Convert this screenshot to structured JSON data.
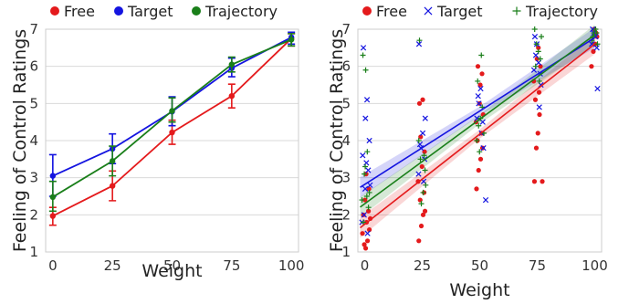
{
  "colors": {
    "Free": "#e41a1c",
    "Target": "#1414e0",
    "Trajectory": "#1a7f1a",
    "grid": "#d9d9d9",
    "frame": "#cccccc"
  },
  "chart_data": [
    {
      "type": "line",
      "xlabel": "Weight",
      "ylabel": "Feeling of Control Ratings",
      "xlim": [
        -3,
        103
      ],
      "ylim": [
        1,
        7
      ],
      "xticks": [
        0,
        25,
        50,
        75,
        100
      ],
      "yticks": [
        1,
        2,
        3,
        4,
        5,
        6,
        7
      ],
      "grid": "horizontal",
      "legend": "top",
      "markers": [
        "dot",
        "dot",
        "dot"
      ],
      "x": [
        0,
        25,
        50,
        75,
        100
      ],
      "series": [
        {
          "name": "Free",
          "values": [
            1.97,
            2.78,
            4.22,
            5.2,
            6.75
          ],
          "err_low": [
            1.72,
            2.38,
            3.9,
            4.88,
            6.55
          ],
          "err_high": [
            2.2,
            3.18,
            4.55,
            5.52,
            6.88
          ]
        },
        {
          "name": "Target",
          "values": [
            3.05,
            3.78,
            4.78,
            5.95,
            6.78
          ],
          "err_low": [
            2.5,
            3.38,
            4.4,
            5.72,
            6.6
          ],
          "err_high": [
            3.62,
            4.18,
            5.18,
            6.22,
            6.92
          ]
        },
        {
          "name": "Trajectory",
          "values": [
            2.48,
            3.45,
            4.8,
            6.05,
            6.72
          ],
          "err_low": [
            2.1,
            3.05,
            4.5,
            5.85,
            6.55
          ],
          "err_high": [
            2.9,
            3.85,
            5.15,
            6.25,
            6.88
          ]
        }
      ]
    },
    {
      "type": "scatter",
      "xlabel": "Weight",
      "ylabel": "Feeling of Control Ratings",
      "xlim": [
        -3,
        103
      ],
      "ylim": [
        1,
        7
      ],
      "xticks": [
        0,
        25,
        50,
        75,
        100
      ],
      "yticks": [
        1,
        2,
        3,
        4,
        5,
        6,
        7
      ],
      "grid": "horizontal",
      "legend": "top",
      "markers": [
        "dot",
        "x",
        "plus"
      ],
      "series": [
        {
          "name": "Free",
          "fit": {
            "intercept": 1.75,
            "slope": 0.0485
          },
          "points": [
            [
              0.4,
              1.1
            ],
            [
              1.2,
              1.3
            ],
            [
              2.0,
              1.6
            ],
            [
              0.8,
              1.8
            ],
            [
              -0.6,
              2.0
            ],
            [
              1.6,
              2.1
            ],
            [
              0.1,
              2.4
            ],
            [
              2.4,
              1.9
            ],
            [
              -1.0,
              1.5
            ],
            [
              1.8,
              2.7
            ],
            [
              0.6,
              3.1
            ],
            [
              -0.2,
              1.2
            ],
            [
              23.5,
              1.3
            ],
            [
              24.6,
              1.7
            ],
            [
              25.4,
              2.0
            ],
            [
              26.2,
              2.1
            ],
            [
              24.1,
              2.4
            ],
            [
              25.8,
              2.6
            ],
            [
              23.2,
              2.9
            ],
            [
              24.9,
              3.3
            ],
            [
              26.0,
              3.7
            ],
            [
              24.3,
              4.1
            ],
            [
              25.2,
              5.1
            ],
            [
              23.8,
              5.0
            ],
            [
              48.6,
              2.7
            ],
            [
              49.5,
              3.2
            ],
            [
              50.4,
              3.5
            ],
            [
              51.2,
              3.8
            ],
            [
              49.0,
              4.0
            ],
            [
              50.8,
              4.2
            ],
            [
              48.4,
              4.5
            ],
            [
              51.5,
              4.7
            ],
            [
              49.9,
              5.0
            ],
            [
              50.2,
              5.5
            ],
            [
              49.2,
              6.0
            ],
            [
              51.0,
              5.8
            ],
            [
              73.8,
              2.9
            ],
            [
              74.6,
              3.8
            ],
            [
              75.3,
              4.2
            ],
            [
              76.0,
              4.7
            ],
            [
              74.2,
              5.1
            ],
            [
              75.8,
              5.3
            ],
            [
              73.5,
              5.6
            ],
            [
              76.4,
              6.0
            ],
            [
              74.9,
              6.2
            ],
            [
              75.5,
              6.5
            ],
            [
              77.2,
              2.9
            ],
            [
              98.6,
              6.0
            ],
            [
              99.4,
              6.4
            ],
            [
              100.2,
              6.6
            ],
            [
              101.0,
              6.8
            ],
            [
              99.8,
              7.0
            ],
            [
              100.6,
              6.9
            ]
          ]
        },
        {
          "name": "Target",
          "fit": {
            "intercept": 2.82,
            "slope": 0.0395
          },
          "points": [
            [
              -0.6,
              6.5
            ],
            [
              0.3,
              4.6
            ],
            [
              1.0,
              5.1
            ],
            [
              -0.9,
              3.6
            ],
            [
              1.5,
              3.2
            ],
            [
              0.2,
              2.7
            ],
            [
              -0.3,
              2.0
            ],
            [
              1.2,
              1.5
            ],
            [
              2.0,
              4.0
            ],
            [
              0.7,
              3.4
            ],
            [
              -1.2,
              1.8
            ],
            [
              2.3,
              2.8
            ],
            [
              23.6,
              6.6
            ],
            [
              24.4,
              3.8
            ],
            [
              25.2,
              4.2
            ],
            [
              26.0,
              3.5
            ],
            [
              24.0,
              3.9
            ],
            [
              25.6,
              2.9
            ],
            [
              23.4,
              3.1
            ],
            [
              26.3,
              4.6
            ],
            [
              48.8,
              4.6
            ],
            [
              49.6,
              5.0
            ],
            [
              50.4,
              5.4
            ],
            [
              51.3,
              4.5
            ],
            [
              49.3,
              5.2
            ],
            [
              50.8,
              4.2
            ],
            [
              52.6,
              2.4
            ],
            [
              51.6,
              3.8
            ],
            [
              74.0,
              6.8
            ],
            [
              74.8,
              6.6
            ],
            [
              75.6,
              6.1
            ],
            [
              76.3,
              5.8
            ],
            [
              74.4,
              6.3
            ],
            [
              75.9,
              4.9
            ],
            [
              76.6,
              5.5
            ],
            [
              73.6,
              5.9
            ],
            [
              98.7,
              6.6
            ],
            [
              99.6,
              6.9
            ],
            [
              100.4,
              6.8
            ],
            [
              101.2,
              5.4
            ],
            [
              99.1,
              7.0
            ],
            [
              100.9,
              6.5
            ]
          ]
        },
        {
          "name": "Trajectory",
          "fit": {
            "intercept": 2.3,
            "slope": 0.0455
          },
          "points": [
            [
              -0.8,
              6.3
            ],
            [
              0.4,
              5.9
            ],
            [
              1.1,
              3.7
            ],
            [
              -0.2,
              3.1
            ],
            [
              0.9,
              2.5
            ],
            [
              1.6,
              2.2
            ],
            [
              -0.6,
              1.8
            ],
            [
              2.0,
              2.6
            ],
            [
              0.2,
              3.3
            ],
            [
              -1.2,
              2.4
            ],
            [
              23.8,
              6.7
            ],
            [
              24.6,
              2.3
            ],
            [
              25.4,
              2.6
            ],
            [
              26.2,
              3.2
            ],
            [
              24.2,
              3.5
            ],
            [
              25.8,
              3.6
            ],
            [
              23.5,
              4.0
            ],
            [
              26.5,
              2.8
            ],
            [
              48.7,
              4.0
            ],
            [
              49.5,
              4.4
            ],
            [
              50.3,
              4.6
            ],
            [
              51.1,
              4.9
            ],
            [
              49.1,
              5.6
            ],
            [
              50.7,
              6.3
            ],
            [
              51.8,
              4.2
            ],
            [
              49.9,
              3.7
            ],
            [
              73.9,
              7.0
            ],
            [
              74.7,
              6.6
            ],
            [
              75.5,
              6.4
            ],
            [
              76.3,
              6.2
            ],
            [
              74.3,
              6.0
            ],
            [
              75.9,
              5.6
            ],
            [
              76.8,
              6.8
            ],
            [
              98.8,
              6.7
            ],
            [
              99.6,
              6.9
            ],
            [
              100.4,
              7.0
            ],
            [
              101.2,
              6.6
            ],
            [
              99.2,
              6.8
            ],
            [
              100.8,
              6.9
            ]
          ]
        }
      ]
    }
  ]
}
